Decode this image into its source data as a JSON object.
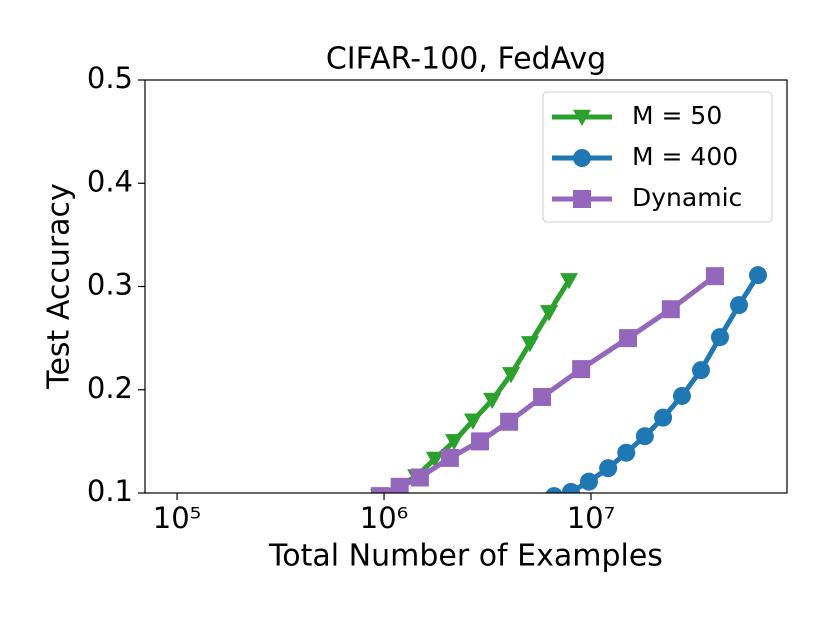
{
  "chart_data": {
    "type": "line",
    "title": "CIFAR-100, FedAvg",
    "x_label": "Total Number of Examples",
    "y_label": "Test Accuracy",
    "xscale": "log",
    "xlim": [
      70000,
      88500000
    ],
    "ylim": [
      0.1,
      0.5
    ],
    "xticks": [
      {
        "value": 100000,
        "label": "10⁵"
      },
      {
        "value": 1000000,
        "label": "10⁶"
      },
      {
        "value": 10000000,
        "label": "10⁷"
      }
    ],
    "yticks": [
      0.1,
      0.2,
      0.3,
      0.4,
      0.5
    ],
    "legend": "upper right",
    "series": [
      {
        "name": "M = 50",
        "color": "#2ca02c",
        "marker": "v",
        "x": [
          946000,
          1430000,
          1760000,
          2180000,
          2690000,
          3330000,
          4110000,
          5070000,
          6270000,
          7830000
        ],
        "values": [
          0.097,
          0.116,
          0.133,
          0.15,
          0.17,
          0.19,
          0.215,
          0.245,
          0.275,
          0.306
        ]
      },
      {
        "name": "M = 400",
        "color": "#1f77b4",
        "marker": "o",
        "x": [
          6630000,
          8000000,
          9770000,
          12100000,
          14800000,
          18200000,
          22300000,
          27500000,
          34000000,
          42000000,
          51900000,
          64100000
        ],
        "values": [
          0.097,
          0.101,
          0.111,
          0.124,
          0.139,
          0.155,
          0.173,
          0.194,
          0.219,
          0.251,
          0.282,
          0.311
        ]
      },
      {
        "name": "Dynamic",
        "color": "#9467bd",
        "marker": "s",
        "x": [
          957000,
          1190000,
          1490000,
          2080000,
          2910000,
          4020000,
          5800000,
          8960000,
          15100000,
          24300000,
          39700000
        ],
        "values": [
          0.097,
          0.106,
          0.115,
          0.134,
          0.15,
          0.169,
          0.193,
          0.22,
          0.25,
          0.278,
          0.31
        ]
      }
    ]
  }
}
